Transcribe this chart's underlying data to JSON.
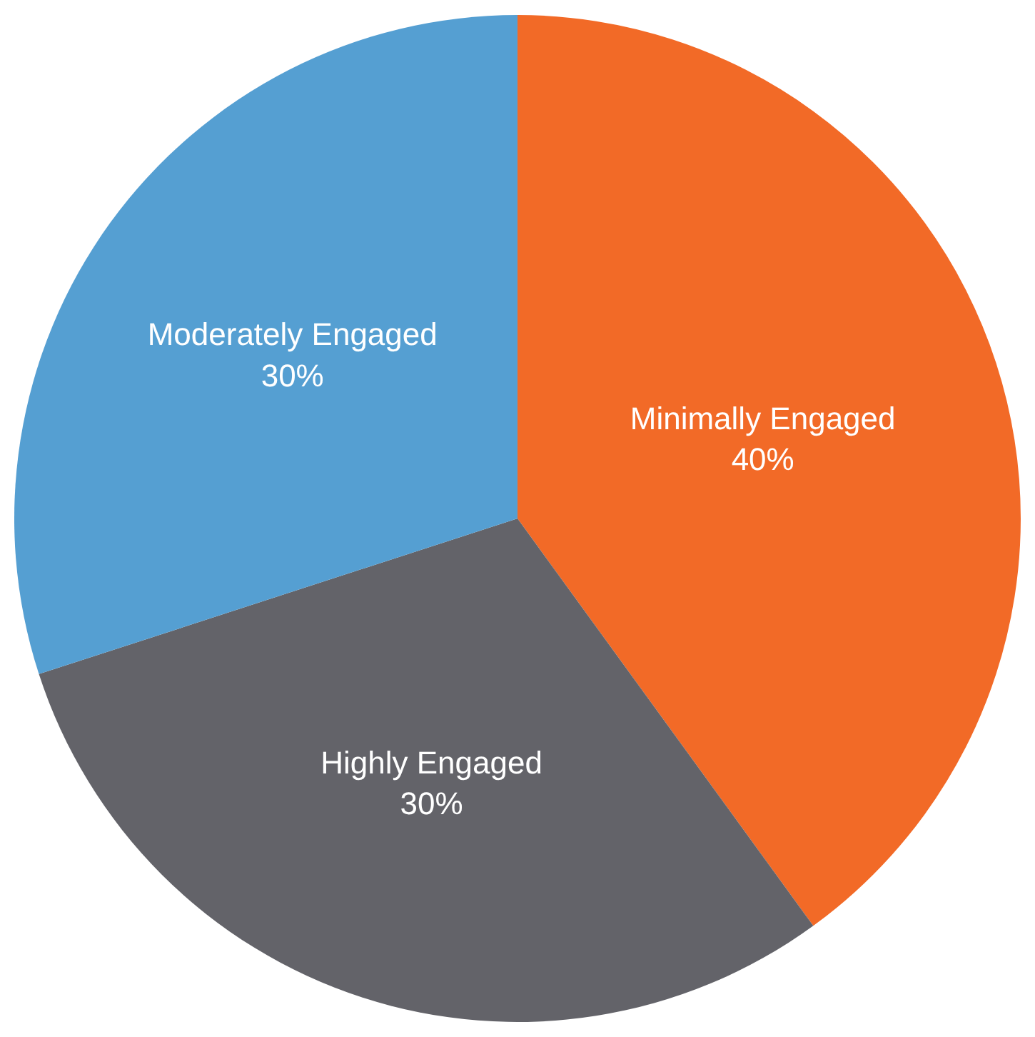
{
  "chart_data": {
    "type": "pie",
    "categories": [
      "Minimally Engaged",
      "Highly Engaged",
      "Moderately Engaged"
    ],
    "values": [
      40,
      30,
      30
    ],
    "value_labels": [
      "40%",
      "30%",
      "30%"
    ],
    "colors": [
      "#f26a27",
      "#636369",
      "#559fd2"
    ],
    "legend": false
  }
}
